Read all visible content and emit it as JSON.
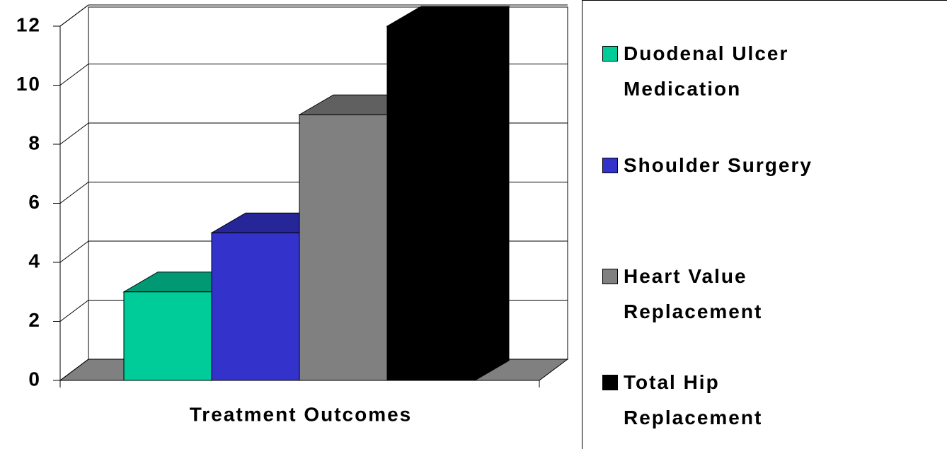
{
  "chart_data": {
    "type": "bar3d",
    "categories": [
      "Treatment Outcomes"
    ],
    "series": [
      {
        "name": "Duodenal Ulcer Medication",
        "color": "#00cc99",
        "values": [
          3
        ]
      },
      {
        "name": "Shoulder Surgery",
        "color": "#3333cc",
        "values": [
          5
        ]
      },
      {
        "name": "Heart Value Replacement",
        "color": "#808080",
        "values": [
          9
        ]
      },
      {
        "name": "Total Hip Replacement",
        "color": "#000000",
        "values": [
          12
        ]
      }
    ],
    "ylim": [
      0,
      12
    ],
    "yticks": [
      0,
      2,
      4,
      6,
      8,
      10,
      12
    ],
    "grid": true,
    "legend": "right"
  }
}
